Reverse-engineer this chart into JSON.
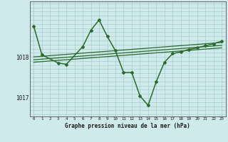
{
  "title": "Graphe pression niveau de la mer (hPa)",
  "bg_color": "#ceeaea",
  "grid_color": "#a8cccc",
  "line_color": "#2d6a2d",
  "xlim": [
    -0.5,
    23.5
  ],
  "ylim": [
    1016.55,
    1019.35
  ],
  "yticks": [
    1017,
    1018
  ],
  "xticks": [
    0,
    1,
    2,
    3,
    4,
    5,
    6,
    7,
    8,
    9,
    10,
    11,
    12,
    13,
    14,
    15,
    16,
    17,
    18,
    19,
    20,
    21,
    22,
    23
  ],
  "main_series_x": [
    0,
    1,
    3,
    4,
    6,
    7,
    8,
    9,
    10,
    11,
    12,
    13,
    14,
    15,
    16,
    17,
    18,
    19,
    20,
    21,
    22,
    23
  ],
  "main_series_y": [
    1018.75,
    1018.05,
    1017.85,
    1017.82,
    1018.25,
    1018.65,
    1018.9,
    1018.5,
    1018.15,
    1017.62,
    1017.62,
    1017.05,
    1016.82,
    1017.4,
    1017.87,
    1018.08,
    1018.12,
    1018.18,
    1018.22,
    1018.27,
    1018.32,
    1018.38
  ],
  "trend_lines": [
    {
      "x": [
        0,
        23
      ],
      "y": [
        1018.0,
        1018.35
      ]
    },
    {
      "x": [
        0,
        23
      ],
      "y": [
        1017.93,
        1018.28
      ]
    },
    {
      "x": [
        0,
        23
      ],
      "y": [
        1017.87,
        1018.22
      ]
    }
  ]
}
